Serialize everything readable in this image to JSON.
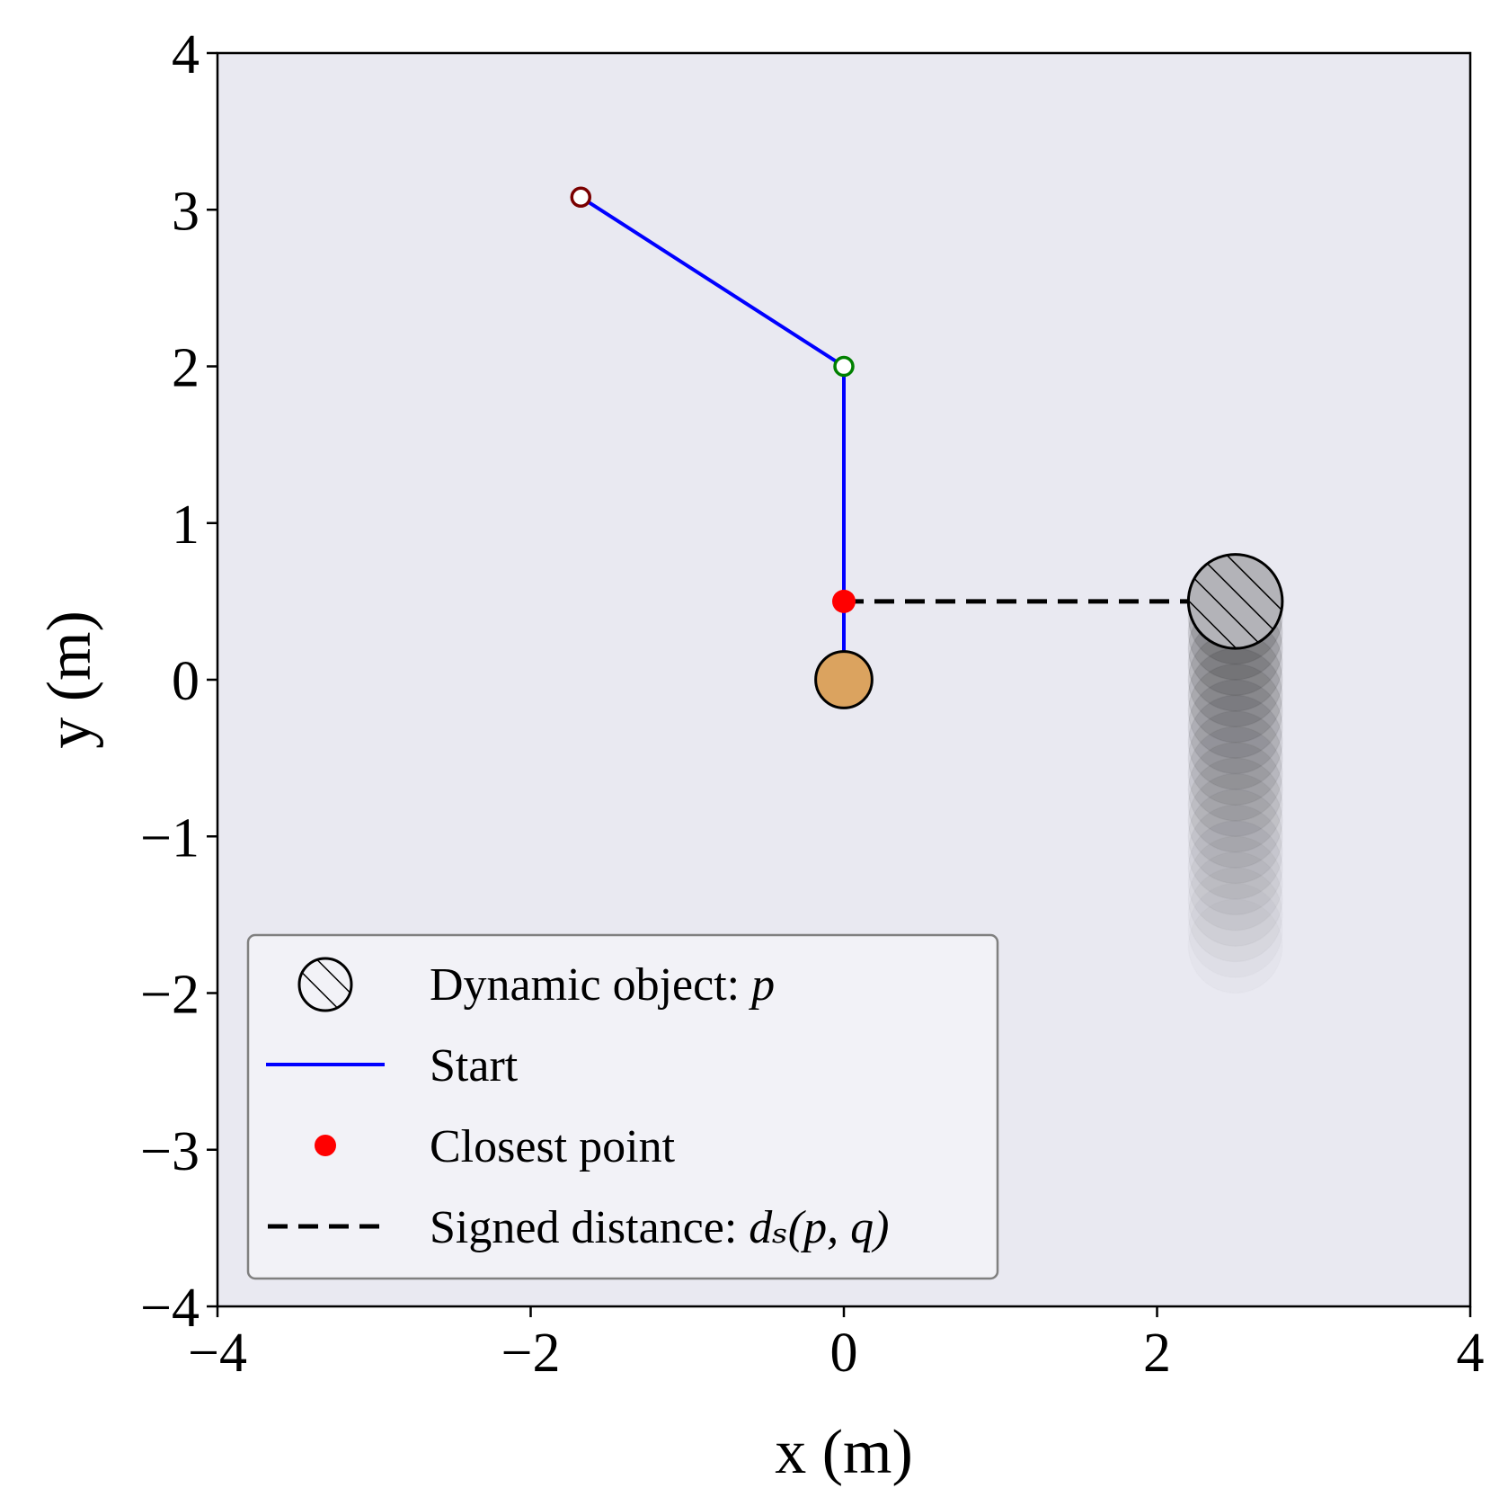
{
  "chart_data": {
    "type": "scatter",
    "xlabel": "x (m)",
    "ylabel": "y (m)",
    "xlim": [
      -4,
      4
    ],
    "ylim": [
      -4,
      4
    ],
    "xticks": [
      -4,
      -2,
      0,
      2,
      4
    ],
    "yticks": [
      -4,
      -3,
      -2,
      -1,
      0,
      1,
      2,
      3,
      4
    ],
    "xtick_labels": [
      "−4",
      "−2",
      "0",
      "2",
      "4"
    ],
    "ytick_labels": [
      "−4",
      "−3",
      "−2",
      "−1",
      "0",
      "1",
      "2",
      "3",
      "4"
    ],
    "grid": false,
    "background_color": "#e9e9f1",
    "arm_links": {
      "name": "Start",
      "color": "#0000ff",
      "x": [
        0,
        0,
        -1.68
      ],
      "y": [
        0,
        2.0,
        3.08
      ]
    },
    "base": {
      "x": 0,
      "y": 0,
      "radius": 0.18,
      "color": "#dba35f"
    },
    "joints": [
      {
        "x": 0,
        "y": 2.0,
        "color": "#008000"
      },
      {
        "x": -1.68,
        "y": 3.08,
        "color": "#7a0000"
      }
    ],
    "closest_point": {
      "name": "Closest point",
      "x": 0,
      "y": 0.5,
      "color": "#ff0000"
    },
    "signed_distance": {
      "name": "Signed distance",
      "x": [
        0,
        2.5
      ],
      "y": [
        0.5,
        0.5
      ],
      "color": "#000000"
    },
    "dynamic_object": {
      "name": "Dynamic object",
      "x": 2.5,
      "y": 0.5,
      "radius": 0.3,
      "trail_x": 2.5,
      "trail_y_start": 0.5,
      "trail_y_end": -1.7,
      "trail_steps": 22
    },
    "legend": {
      "placement": "lower-left",
      "entries": [
        {
          "text": "Dynamic object: ",
          "math": "p",
          "marker": "hatched-circle"
        },
        {
          "text": "Start",
          "marker": "line",
          "color": "#0000ff"
        },
        {
          "text": "Closest point",
          "marker": "dot",
          "color": "#ff0000"
        },
        {
          "text": "Signed distance: ",
          "math": "dₛ(p, q)",
          "marker": "dashed-line",
          "color": "#000000"
        }
      ]
    }
  }
}
